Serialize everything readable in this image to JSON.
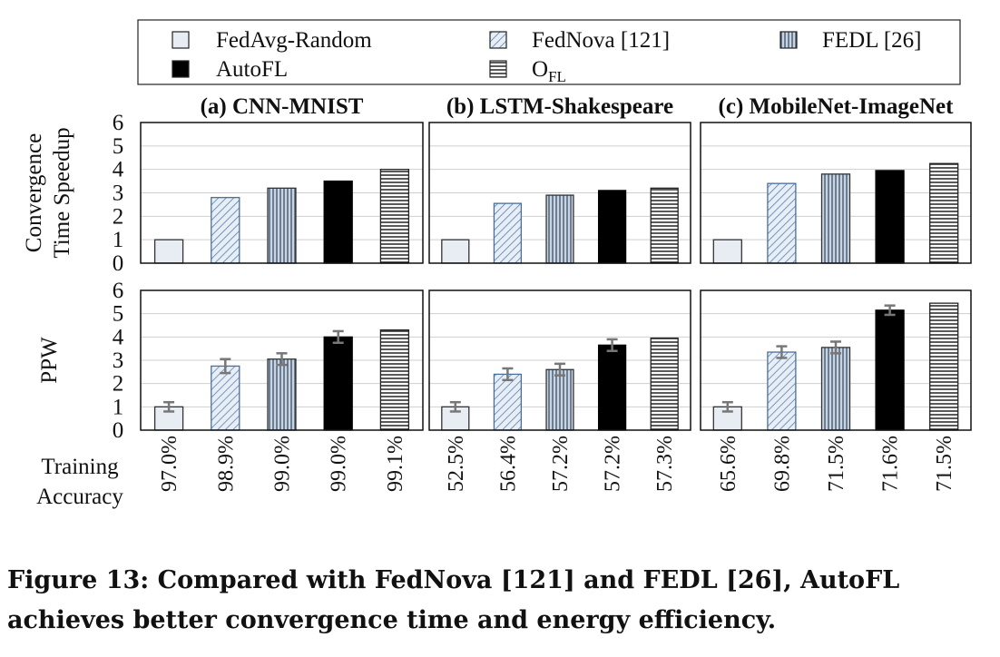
{
  "legend": [
    {
      "key": "fedavg",
      "label": "FedAvg-Random"
    },
    {
      "key": "fednova",
      "label": "FedNova [121]"
    },
    {
      "key": "fedl",
      "label": "FEDL [26]"
    },
    {
      "key": "autofl",
      "label": "AutoFL"
    },
    {
      "key": "ofl",
      "label": "O",
      "sub": "FL"
    }
  ],
  "accuracy_label_line1": "Training",
  "accuracy_label_line2": "Accuracy",
  "caption": "Figure 13: Compared with FedNova [121] and FEDL [26], AutoFL achieves better convergence time and energy efficiency.",
  "chart_data": {
    "type": "bar",
    "series_names": [
      "FedAvg-Random",
      "FedNova [121]",
      "FEDL [26]",
      "AutoFL",
      "OFL"
    ],
    "panels": [
      {
        "title": "(a) CNN-MNIST",
        "speedup": [
          1,
          2.8,
          3.2,
          3.5,
          4.0
        ],
        "ppw": [
          1,
          2.75,
          3.05,
          4.0,
          4.3
        ],
        "ppw_error": [
          0.2,
          0.3,
          0.25,
          0.25,
          null
        ],
        "accuracy": [
          "97.0%",
          "98.9%",
          "99.0%",
          "99.0%",
          "99.1%"
        ]
      },
      {
        "title": "(b) LSTM-Shakespeare",
        "speedup": [
          1,
          2.55,
          2.9,
          3.1,
          3.2
        ],
        "ppw": [
          1,
          2.4,
          2.6,
          3.65,
          3.95
        ],
        "ppw_error": [
          0.2,
          0.25,
          0.25,
          0.25,
          null
        ],
        "accuracy": [
          "52.5%",
          "56.4%",
          "57.2%",
          "57.2%",
          "57.3%"
        ]
      },
      {
        "title": "(c) MobileNet-ImageNet",
        "speedup": [
          1,
          3.4,
          3.8,
          3.95,
          4.25
        ],
        "ppw": [
          1,
          3.35,
          3.55,
          5.15,
          5.45
        ],
        "ppw_error": [
          0.2,
          0.25,
          0.25,
          0.2,
          null
        ],
        "accuracy": [
          "65.6%",
          "69.8%",
          "71.5%",
          "71.6%",
          "71.5%"
        ]
      }
    ],
    "rows": [
      {
        "key": "speedup",
        "ylabel_line1": "Convergence",
        "ylabel_line2": "Time Speedup",
        "ylim": [
          0,
          6
        ]
      },
      {
        "key": "ppw",
        "ylabel_line1": "PPW",
        "ylabel_line2": "",
        "ylim": [
          0,
          6
        ]
      }
    ],
    "yticks": [
      "0",
      "1",
      "2",
      "3",
      "4",
      "5",
      "6"
    ],
    "grid": true,
    "legend_position": "top"
  }
}
